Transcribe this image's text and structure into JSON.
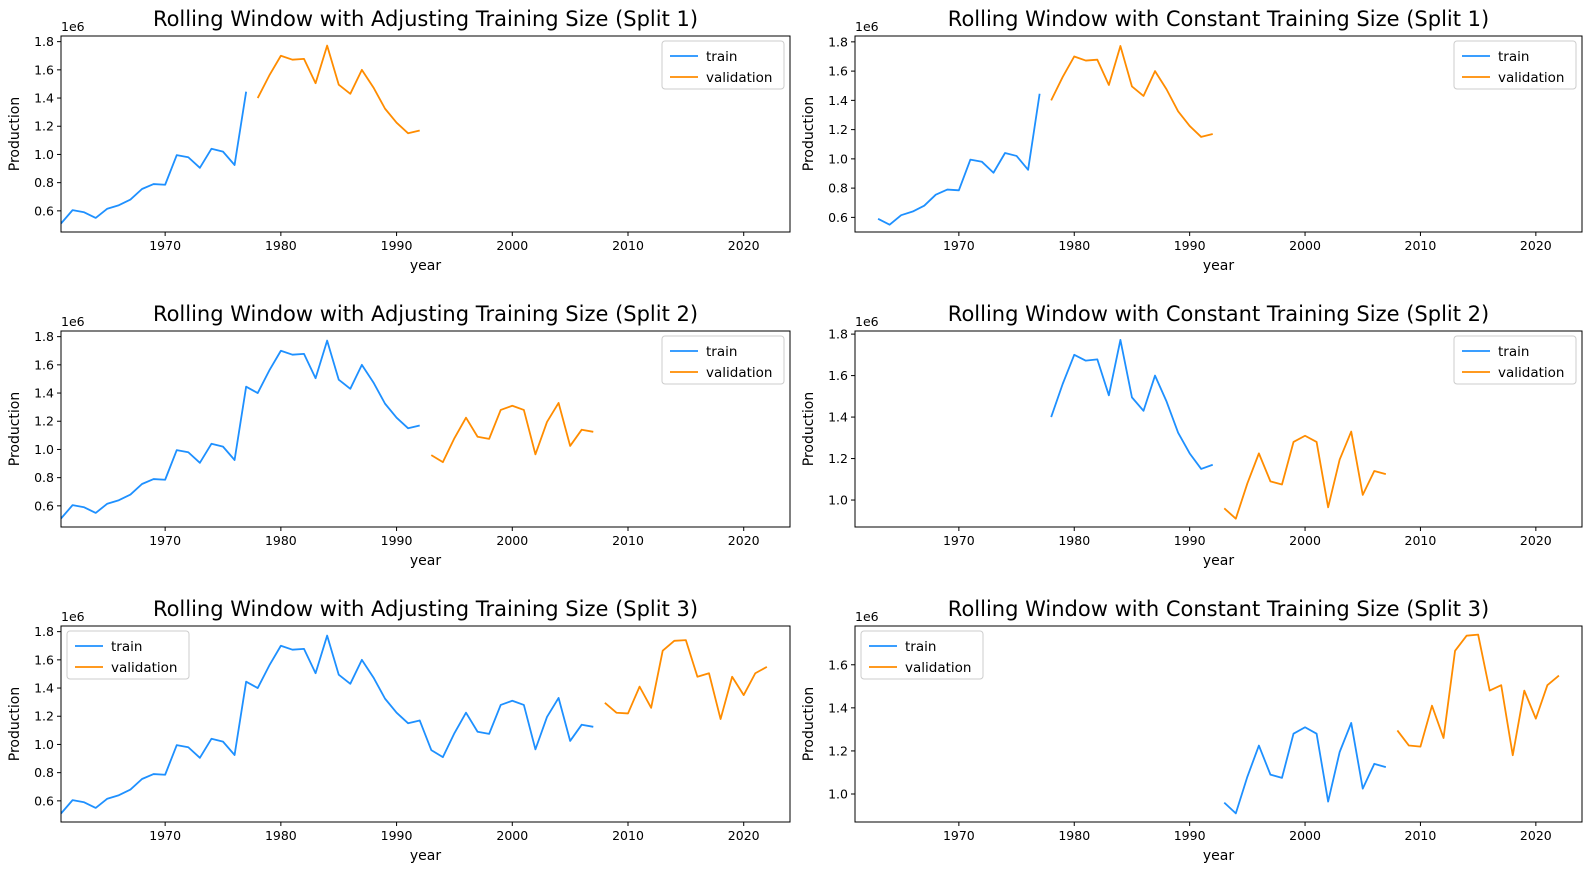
{
  "chart_data": [
    {
      "type": "line",
      "title": "Rolling Window with Adjusting Training Size (Split 1)",
      "xlabel": "year",
      "ylabel": "Production",
      "y_multiplier": "1e6",
      "xlim": [
        1961,
        2024
      ],
      "ylim": [
        0.45,
        1.84
      ],
      "xticks": [
        1970,
        1980,
        1990,
        2000,
        2010,
        2020
      ],
      "yticks": [
        0.6,
        0.8,
        1.0,
        1.2,
        1.4,
        1.6,
        1.8
      ],
      "ytick_labels": [
        "0.6",
        "0.8",
        "1.0",
        "1.2",
        "1.4",
        "1.6",
        "1.8"
      ],
      "legend": "top-right",
      "grid": false,
      "series": [
        {
          "name": "train",
          "color": "#1e90ff",
          "x": [
            1961,
            1962,
            1963,
            1964,
            1965,
            1966,
            1967,
            1968,
            1969,
            1970,
            1971,
            1972,
            1973,
            1974,
            1975,
            1976,
            1977
          ],
          "y": [
            0.51,
            0.605,
            0.59,
            0.55,
            0.615,
            0.64,
            0.68,
            0.755,
            0.79,
            0.785,
            0.995,
            0.98,
            0.905,
            1.04,
            1.02,
            0.925,
            1.445
          ]
        },
        {
          "name": "validation",
          "color": "#ff8c00",
          "x": [
            1978,
            1979,
            1980,
            1981,
            1982,
            1983,
            1984,
            1985,
            1986,
            1987,
            1988,
            1989,
            1990,
            1991,
            1992
          ],
          "y": [
            1.4,
            1.56,
            1.7,
            1.672,
            1.678,
            1.505,
            1.772,
            1.495,
            1.43,
            1.6,
            1.475,
            1.325,
            1.225,
            1.15,
            1.17
          ]
        }
      ]
    },
    {
      "type": "line",
      "title": "Rolling Window with Constant Training Size (Split 1)",
      "xlabel": "year",
      "ylabel": "Production",
      "y_multiplier": "1e6",
      "xlim": [
        1961,
        2024
      ],
      "ylim": [
        0.5,
        1.84
      ],
      "xticks": [
        1970,
        1980,
        1990,
        2000,
        2010,
        2020
      ],
      "yticks": [
        0.6,
        0.8,
        1.0,
        1.2,
        1.4,
        1.6,
        1.8
      ],
      "ytick_labels": [
        "0.6",
        "0.8",
        "1.0",
        "1.2",
        "1.4",
        "1.6",
        "1.8"
      ],
      "legend": "top-right",
      "grid": false,
      "series": [
        {
          "name": "train",
          "color": "#1e90ff",
          "x": [
            1963,
            1964,
            1965,
            1966,
            1967,
            1968,
            1969,
            1970,
            1971,
            1972,
            1973,
            1974,
            1975,
            1976,
            1977
          ],
          "y": [
            0.59,
            0.55,
            0.615,
            0.64,
            0.68,
            0.755,
            0.79,
            0.785,
            0.995,
            0.98,
            0.905,
            1.04,
            1.02,
            0.925,
            1.445
          ]
        },
        {
          "name": "validation",
          "color": "#ff8c00",
          "x": [
            1978,
            1979,
            1980,
            1981,
            1982,
            1983,
            1984,
            1985,
            1986,
            1987,
            1988,
            1989,
            1990,
            1991,
            1992
          ],
          "y": [
            1.4,
            1.56,
            1.7,
            1.672,
            1.678,
            1.505,
            1.772,
            1.495,
            1.43,
            1.6,
            1.475,
            1.325,
            1.225,
            1.15,
            1.17
          ]
        }
      ]
    },
    {
      "type": "line",
      "title": "Rolling Window with Adjusting Training Size (Split 2)",
      "xlabel": "year",
      "ylabel": "Production",
      "y_multiplier": "1e6",
      "xlim": [
        1961,
        2024
      ],
      "ylim": [
        0.45,
        1.84
      ],
      "xticks": [
        1970,
        1980,
        1990,
        2000,
        2010,
        2020
      ],
      "yticks": [
        0.6,
        0.8,
        1.0,
        1.2,
        1.4,
        1.6,
        1.8
      ],
      "ytick_labels": [
        "0.6",
        "0.8",
        "1.0",
        "1.2",
        "1.4",
        "1.6",
        "1.8"
      ],
      "legend": "top-right",
      "grid": false,
      "series": [
        {
          "name": "train",
          "color": "#1e90ff",
          "x": [
            1961,
            1962,
            1963,
            1964,
            1965,
            1966,
            1967,
            1968,
            1969,
            1970,
            1971,
            1972,
            1973,
            1974,
            1975,
            1976,
            1977,
            1978,
            1979,
            1980,
            1981,
            1982,
            1983,
            1984,
            1985,
            1986,
            1987,
            1988,
            1989,
            1990,
            1991,
            1992
          ],
          "y": [
            0.51,
            0.605,
            0.59,
            0.55,
            0.615,
            0.64,
            0.68,
            0.755,
            0.79,
            0.785,
            0.995,
            0.98,
            0.905,
            1.04,
            1.02,
            0.925,
            1.445,
            1.4,
            1.56,
            1.7,
            1.672,
            1.678,
            1.505,
            1.772,
            1.495,
            1.43,
            1.6,
            1.475,
            1.325,
            1.225,
            1.15,
            1.17
          ]
        },
        {
          "name": "validation",
          "color": "#ff8c00",
          "x": [
            1993,
            1994,
            1995,
            1996,
            1997,
            1998,
            1999,
            2000,
            2001,
            2002,
            2003,
            2004,
            2005,
            2006,
            2007
          ],
          "y": [
            0.96,
            0.91,
            1.08,
            1.225,
            1.09,
            1.075,
            1.28,
            1.31,
            1.28,
            0.965,
            1.195,
            1.33,
            1.025,
            1.14,
            1.125
          ]
        }
      ]
    },
    {
      "type": "line",
      "title": "Rolling Window with Constant Training Size (Split 2)",
      "xlabel": "year",
      "ylabel": "Production",
      "y_multiplier": "1e6",
      "xlim": [
        1961,
        2024
      ],
      "ylim": [
        0.87,
        1.815
      ],
      "xticks": [
        1970,
        1980,
        1990,
        2000,
        2010,
        2020
      ],
      "yticks": [
        1.0,
        1.2,
        1.4,
        1.6,
        1.8
      ],
      "ytick_labels": [
        "1.0",
        "1.2",
        "1.4",
        "1.6",
        "1.8"
      ],
      "legend": "top-right",
      "grid": false,
      "series": [
        {
          "name": "train",
          "color": "#1e90ff",
          "x": [
            1978,
            1979,
            1980,
            1981,
            1982,
            1983,
            1984,
            1985,
            1986,
            1987,
            1988,
            1989,
            1990,
            1991,
            1992
          ],
          "y": [
            1.4,
            1.56,
            1.7,
            1.672,
            1.678,
            1.505,
            1.772,
            1.495,
            1.43,
            1.6,
            1.475,
            1.325,
            1.225,
            1.15,
            1.17
          ]
        },
        {
          "name": "validation",
          "color": "#ff8c00",
          "x": [
            1993,
            1994,
            1995,
            1996,
            1997,
            1998,
            1999,
            2000,
            2001,
            2002,
            2003,
            2004,
            2005,
            2006,
            2007
          ],
          "y": [
            0.96,
            0.91,
            1.08,
            1.225,
            1.09,
            1.075,
            1.28,
            1.31,
            1.28,
            0.965,
            1.195,
            1.33,
            1.025,
            1.14,
            1.125
          ]
        }
      ]
    },
    {
      "type": "line",
      "title": "Rolling Window with Adjusting Training Size (Split 3)",
      "xlabel": "year",
      "ylabel": "Production",
      "y_multiplier": "1e6",
      "xlim": [
        1961,
        2024
      ],
      "ylim": [
        0.45,
        1.84
      ],
      "xticks": [
        1970,
        1980,
        1990,
        2000,
        2010,
        2020
      ],
      "yticks": [
        0.6,
        0.8,
        1.0,
        1.2,
        1.4,
        1.6,
        1.8
      ],
      "ytick_labels": [
        "0.6",
        "0.8",
        "1.0",
        "1.2",
        "1.4",
        "1.6",
        "1.8"
      ],
      "legend": "top-left",
      "grid": false,
      "series": [
        {
          "name": "train",
          "color": "#1e90ff",
          "x": [
            1961,
            1962,
            1963,
            1964,
            1965,
            1966,
            1967,
            1968,
            1969,
            1970,
            1971,
            1972,
            1973,
            1974,
            1975,
            1976,
            1977,
            1978,
            1979,
            1980,
            1981,
            1982,
            1983,
            1984,
            1985,
            1986,
            1987,
            1988,
            1989,
            1990,
            1991,
            1992,
            1993,
            1994,
            1995,
            1996,
            1997,
            1998,
            1999,
            2000,
            2001,
            2002,
            2003,
            2004,
            2005,
            2006,
            2007
          ],
          "y": [
            0.51,
            0.605,
            0.59,
            0.55,
            0.615,
            0.64,
            0.68,
            0.755,
            0.79,
            0.785,
            0.995,
            0.98,
            0.905,
            1.04,
            1.02,
            0.925,
            1.445,
            1.4,
            1.56,
            1.7,
            1.672,
            1.678,
            1.505,
            1.772,
            1.495,
            1.43,
            1.6,
            1.475,
            1.325,
            1.225,
            1.15,
            1.17,
            0.96,
            0.91,
            1.08,
            1.225,
            1.09,
            1.075,
            1.28,
            1.31,
            1.28,
            0.965,
            1.195,
            1.33,
            1.025,
            1.14,
            1.125
          ]
        },
        {
          "name": "validation",
          "color": "#ff8c00",
          "x": [
            2008,
            2009,
            2010,
            2011,
            2012,
            2013,
            2014,
            2015,
            2016,
            2017,
            2018,
            2019,
            2020,
            2021,
            2022
          ],
          "y": [
            1.295,
            1.225,
            1.22,
            1.41,
            1.26,
            1.665,
            1.735,
            1.74,
            1.48,
            1.505,
            1.18,
            1.48,
            1.35,
            1.505,
            1.55
          ]
        }
      ]
    },
    {
      "type": "line",
      "title": "Rolling Window with Constant Training Size (Split 3)",
      "xlabel": "year",
      "ylabel": "Production",
      "y_multiplier": "1e6",
      "xlim": [
        1961,
        2024
      ],
      "ylim": [
        0.87,
        1.78
      ],
      "xticks": [
        1970,
        1980,
        1990,
        2000,
        2010,
        2020
      ],
      "yticks": [
        1.0,
        1.2,
        1.4,
        1.6
      ],
      "ytick_labels": [
        "1.0",
        "1.2",
        "1.4",
        "1.6"
      ],
      "legend": "top-left",
      "grid": false,
      "series": [
        {
          "name": "train",
          "color": "#1e90ff",
          "x": [
            1993,
            1994,
            1995,
            1996,
            1997,
            1998,
            1999,
            2000,
            2001,
            2002,
            2003,
            2004,
            2005,
            2006,
            2007
          ],
          "y": [
            0.96,
            0.91,
            1.08,
            1.225,
            1.09,
            1.075,
            1.28,
            1.31,
            1.28,
            0.965,
            1.195,
            1.33,
            1.025,
            1.14,
            1.125
          ]
        },
        {
          "name": "validation",
          "color": "#ff8c00",
          "x": [
            2008,
            2009,
            2010,
            2011,
            2012,
            2013,
            2014,
            2015,
            2016,
            2017,
            2018,
            2019,
            2020,
            2021,
            2022
          ],
          "y": [
            1.295,
            1.225,
            1.22,
            1.41,
            1.26,
            1.665,
            1.735,
            1.74,
            1.48,
            1.505,
            1.18,
            1.48,
            1.35,
            1.505,
            1.55
          ]
        }
      ]
    }
  ]
}
